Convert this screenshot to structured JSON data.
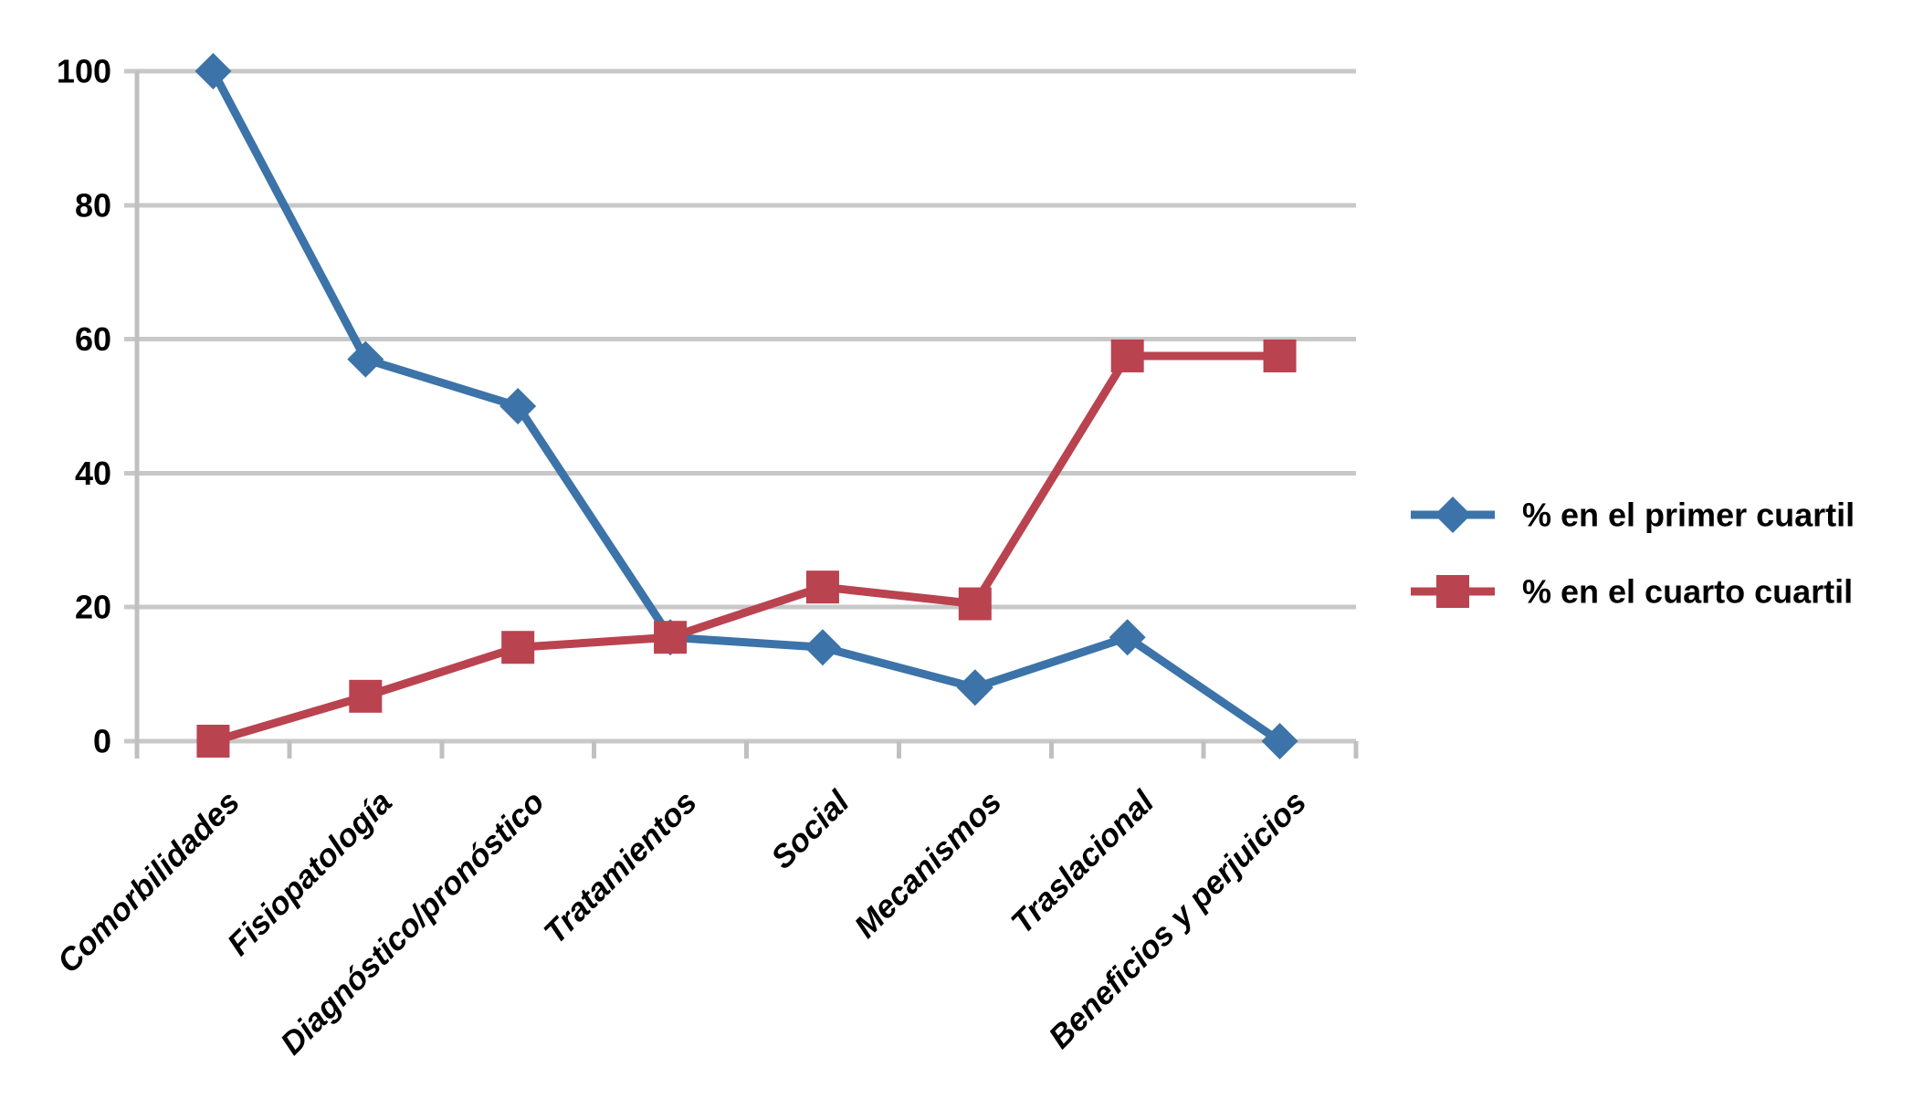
{
  "chart_data": {
    "type": "line",
    "title": "",
    "xlabel": "",
    "ylabel": "",
    "categories": [
      "Comorbilidades",
      "Fisiopatología",
      "Diagnóstico/pronóstico",
      "Tratamientos",
      "Social",
      "Mecanismos",
      "Traslacional",
      "Beneficios y perjuicios"
    ],
    "series": [
      {
        "name": "% en el primer cuartil",
        "marker": "diamond",
        "color": "#3C73A8",
        "values": [
          100,
          57,
          50,
          15.5,
          14,
          8,
          15.5,
          0
        ]
      },
      {
        "name": "% en el cuarto cuartil",
        "marker": "square",
        "color": "#BA4350",
        "values": [
          0,
          6.7,
          14,
          15.5,
          23,
          20.5,
          57.5,
          57.5
        ]
      }
    ],
    "ylim": [
      0,
      100
    ],
    "yticks": [
      0,
      20,
      40,
      60,
      80,
      100
    ],
    "grid": true,
    "legend_position": "right",
    "colors": {
      "gridline": "#C8C8C8",
      "axis": "#C0C0C0",
      "text": "#000000",
      "background": "#FFFFFF"
    }
  }
}
